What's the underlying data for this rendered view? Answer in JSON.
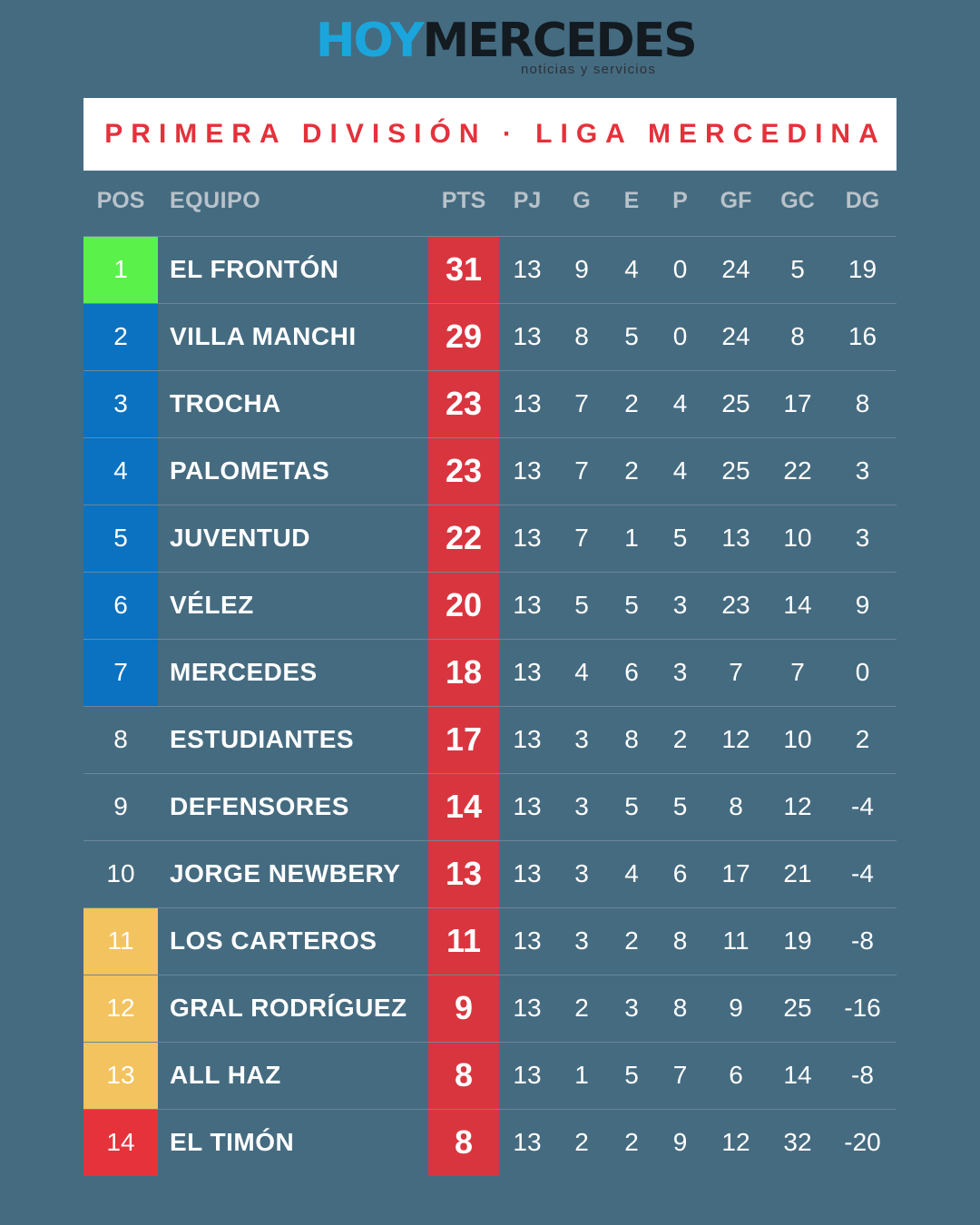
{
  "brand": {
    "hoy": "HOY",
    "mercedes": "MERCEDES",
    "tagline": "noticias y servicios"
  },
  "title": "PRIMERA DIVISIÓN · LIGA MERCEDINA",
  "headers": {
    "pos": "POS",
    "team": "EQUIPO",
    "pts": "PTS",
    "pj": "PJ",
    "g": "G",
    "e": "E",
    "p": "P",
    "gf": "GF",
    "gc": "GC",
    "dg": "DG"
  },
  "colors": {
    "background": "#456b80",
    "title": "#e4313b",
    "points": "#d9353f",
    "leader": "#5af24a",
    "qualify": "#0a72c0",
    "warning": "#f2c35e",
    "relegation": "#e6323b"
  },
  "rows": [
    {
      "pos": "1",
      "team": "EL FRONTÓN",
      "pts": "31",
      "pj": "13",
      "g": "9",
      "e": "4",
      "p": "0",
      "gf": "24",
      "gc": "5",
      "dg": "19",
      "zone": "#5af24a"
    },
    {
      "pos": "2",
      "team": "VILLA MANCHI",
      "pts": "29",
      "pj": "13",
      "g": "8",
      "e": "5",
      "p": "0",
      "gf": "24",
      "gc": "8",
      "dg": "16",
      "zone": "#0a72c0"
    },
    {
      "pos": "3",
      "team": "TROCHA",
      "pts": "23",
      "pj": "13",
      "g": "7",
      "e": "2",
      "p": "4",
      "gf": "25",
      "gc": "17",
      "dg": "8",
      "zone": "#0a72c0"
    },
    {
      "pos": "4",
      "team": "PALOMETAS",
      "pts": "23",
      "pj": "13",
      "g": "7",
      "e": "2",
      "p": "4",
      "gf": "25",
      "gc": "22",
      "dg": "3",
      "zone": "#0a72c0"
    },
    {
      "pos": "5",
      "team": "JUVENTUD",
      "pts": "22",
      "pj": "13",
      "g": "7",
      "e": "1",
      "p": "5",
      "gf": "13",
      "gc": "10",
      "dg": "3",
      "zone": "#0a72c0"
    },
    {
      "pos": "6",
      "team": "VÉLEZ",
      "pts": "20",
      "pj": "13",
      "g": "5",
      "e": "5",
      "p": "3",
      "gf": "23",
      "gc": "14",
      "dg": "9",
      "zone": "#0a72c0"
    },
    {
      "pos": "7",
      "team": "MERCEDES",
      "pts": "18",
      "pj": "13",
      "g": "4",
      "e": "6",
      "p": "3",
      "gf": "7",
      "gc": "7",
      "dg": "0",
      "zone": "#0a72c0"
    },
    {
      "pos": "8",
      "team": "ESTUDIANTES",
      "pts": "17",
      "pj": "13",
      "g": "3",
      "e": "8",
      "p": "2",
      "gf": "12",
      "gc": "10",
      "dg": "2",
      "zone": ""
    },
    {
      "pos": "9",
      "team": "DEFENSORES",
      "pts": "14",
      "pj": "13",
      "g": "3",
      "e": "5",
      "p": "5",
      "gf": "8",
      "gc": "12",
      "dg": "-4",
      "zone": ""
    },
    {
      "pos": "10",
      "team": "JORGE NEWBERY",
      "pts": "13",
      "pj": "13",
      "g": "3",
      "e": "4",
      "p": "6",
      "gf": "17",
      "gc": "21",
      "dg": "-4",
      "zone": ""
    },
    {
      "pos": "11",
      "team": "LOS CARTEROS",
      "pts": "11",
      "pj": "13",
      "g": "3",
      "e": "2",
      "p": "8",
      "gf": "11",
      "gc": "19",
      "dg": "-8",
      "zone": "#f2c35e"
    },
    {
      "pos": "12",
      "team": "GRAL RODRÍGUEZ",
      "pts": "9",
      "pj": "13",
      "g": "2",
      "e": "3",
      "p": "8",
      "gf": "9",
      "gc": "25",
      "dg": "-16",
      "zone": "#f2c35e"
    },
    {
      "pos": "13",
      "team": "ALL HAZ",
      "pts": "8",
      "pj": "13",
      "g": "1",
      "e": "5",
      "p": "7",
      "gf": "6",
      "gc": "14",
      "dg": "-8",
      "zone": "#f2c35e"
    },
    {
      "pos": "14",
      "team": "EL TIMÓN",
      "pts": "8",
      "pj": "13",
      "g": "2",
      "e": "2",
      "p": "9",
      "gf": "12",
      "gc": "32",
      "dg": "-20",
      "zone": "#e6323b"
    }
  ]
}
